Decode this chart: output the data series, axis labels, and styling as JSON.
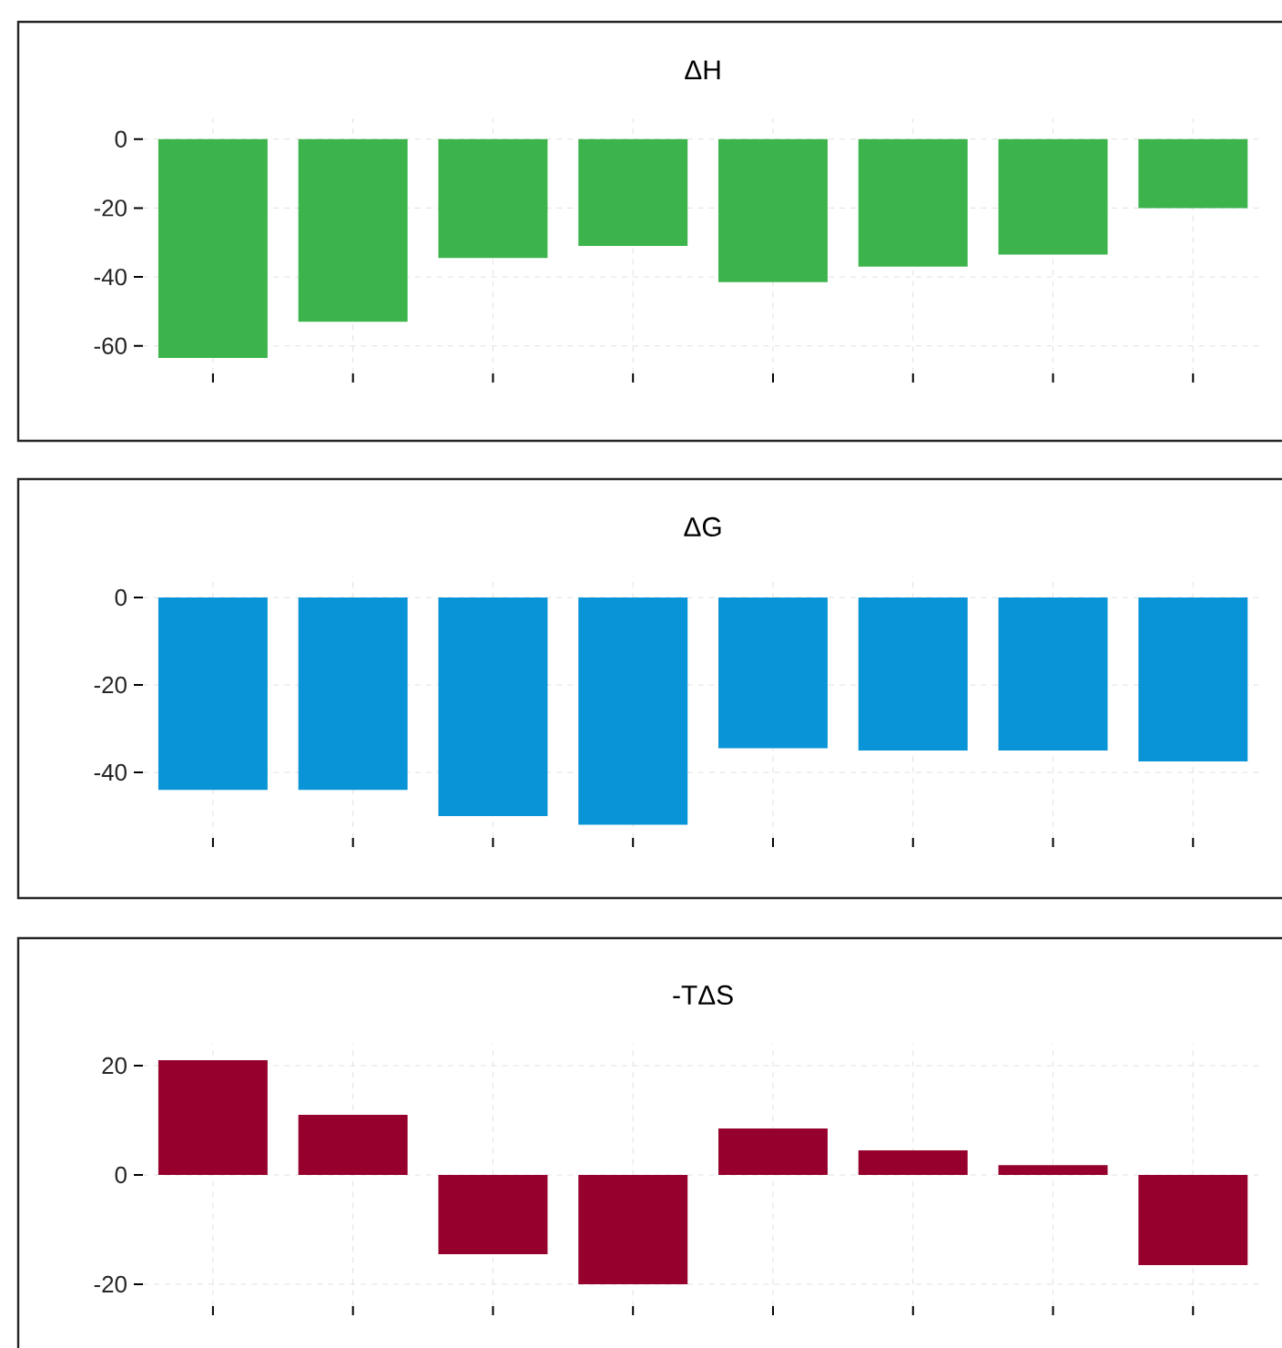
{
  "chart_data": [
    {
      "type": "bar",
      "title": "ΔH",
      "categories": [
        null,
        null,
        null,
        null,
        null,
        null,
        null,
        null
      ],
      "values": [
        -63.5,
        -53,
        -34.5,
        -31,
        -41.5,
        -37,
        -33.5,
        -20
      ],
      "color": "#3cb44b",
      "ylim": [
        -68,
        6
      ],
      "yticks": [
        0,
        -20,
        -40,
        -60
      ],
      "grid": true,
      "tick_labels": "y"
    },
    {
      "type": "bar",
      "title": "ΔG",
      "categories": [
        null,
        null,
        null,
        null,
        null,
        null,
        null,
        null
      ],
      "values": [
        -44,
        -44,
        -50,
        -52,
        -34.5,
        -35,
        -35,
        -37.5
      ],
      "color": "#0894d6",
      "ylim": [
        -55,
        5
      ],
      "yticks": [
        0,
        -20,
        -40
      ],
      "grid": true,
      "tick_labels": "y"
    },
    {
      "type": "bar",
      "title": "-TΔS",
      "categories": [
        null,
        null,
        null,
        null,
        null,
        null,
        null,
        null
      ],
      "values": [
        21,
        11,
        -14.5,
        -20,
        8.5,
        4.5,
        1.8,
        -16.5
      ],
      "color": "#96002d",
      "ylim": [
        -24,
        24
      ],
      "yticks": [
        20,
        0,
        -20
      ],
      "grid": true,
      "tick_labels": "y"
    }
  ]
}
